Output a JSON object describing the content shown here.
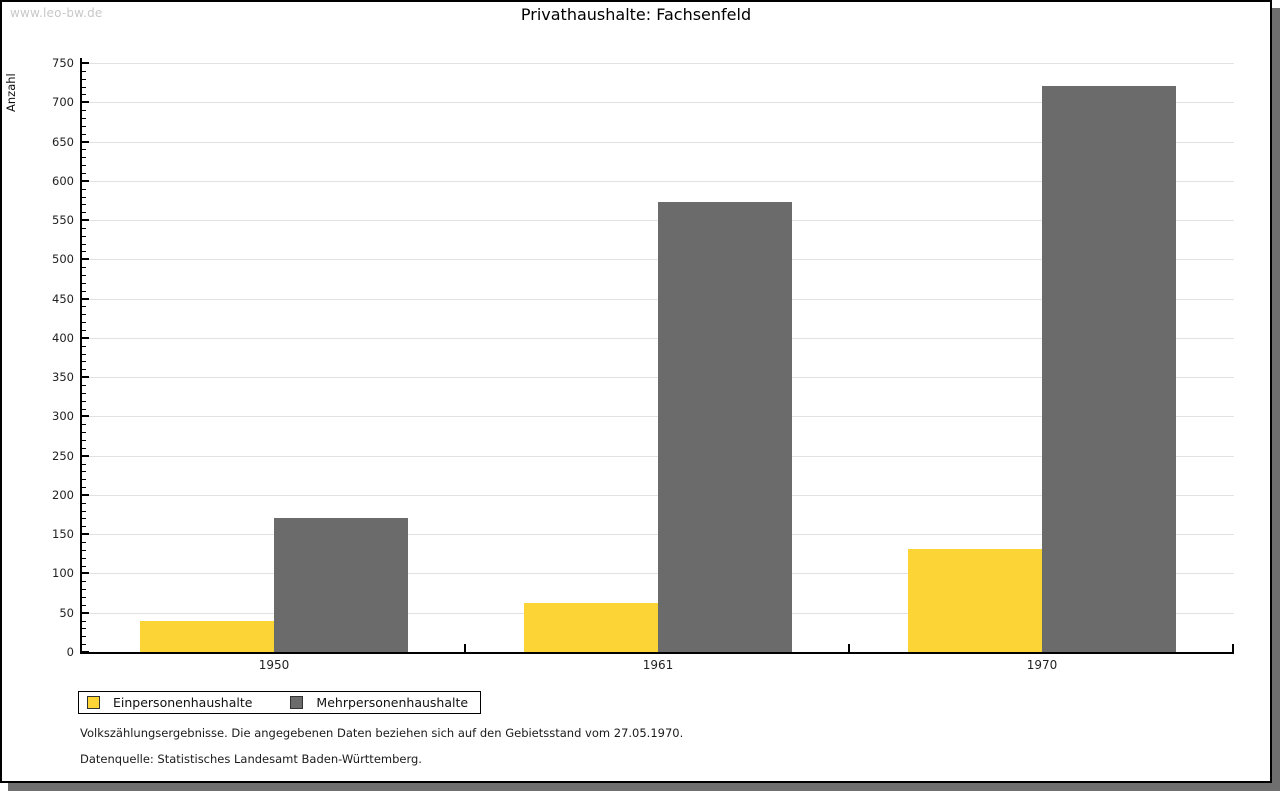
{
  "watermark": "www.leo-bw.de",
  "title": "Privathaushalte: Fachsenfeld",
  "chart_data": {
    "type": "bar",
    "title": "Privathaushalte: Fachsenfeld",
    "categories": [
      "1950",
      "1961",
      "1970"
    ],
    "series": [
      {
        "name": "Einpersonenhaushalte",
        "color": "#fcd435",
        "values": [
          40,
          62,
          131
        ]
      },
      {
        "name": "Mehrpersonenhaushalte",
        "color": "#6b6b6b",
        "values": [
          170,
          573,
          721
        ]
      }
    ],
    "xlabel": "",
    "ylabel": "Anzahl",
    "ylim": [
      0,
      750
    ],
    "ytick_major_step": 50,
    "ytick_minor_step": 10,
    "grid": true,
    "legend_position": "bottom-left",
    "bar_color_einpersonen": "#fcd435",
    "bar_color_mehrpersonen": "#6b6b6b"
  },
  "footnotes": [
    "Volkszählungsergebnisse. Die angegebenen Daten beziehen sich auf den Gebietsstand vom 27.05.1970.",
    "Datenquelle: Statistisches Landesamt Baden-Württemberg."
  ],
  "colors": {
    "gridline": "#e2e2e2",
    "axis": "#000000",
    "shadow": "#6f6f6f",
    "watermark_text": "#c8c8c8",
    "background": "#ffffff"
  }
}
